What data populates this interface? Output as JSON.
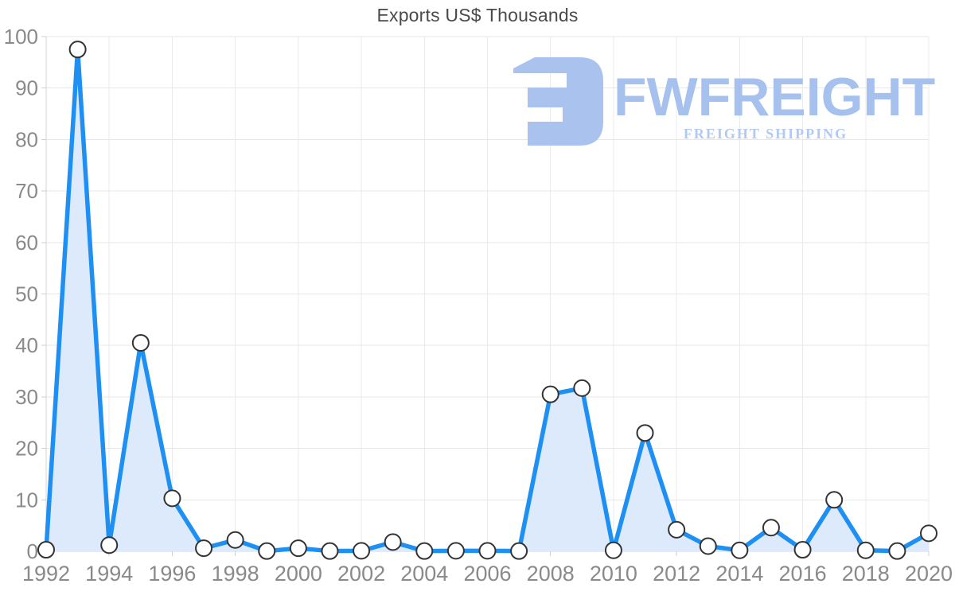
{
  "header": {
    "title": "Exports US$ Thousands"
  },
  "watermark": {
    "brand": "FWFREIGHT",
    "tagline": "FREIGHT SHIPPING",
    "brand_color": "#a6c1ee",
    "tagline_color": "#b2c9f1",
    "icon_color": "#a9c2ee",
    "icon": "freight-logo-icon"
  },
  "chart_data": {
    "type": "area",
    "title": "Exports US$ Thousands",
    "x": [
      1992,
      1993,
      1994,
      1995,
      1996,
      1997,
      1998,
      1999,
      2000,
      2001,
      2002,
      2003,
      2004,
      2005,
      2006,
      2007,
      2008,
      2009,
      2010,
      2011,
      2012,
      2013,
      2014,
      2015,
      2016,
      2017,
      2018,
      2019,
      2020
    ],
    "values": [
      0.3,
      97.5,
      1.2,
      40.5,
      10.3,
      0.6,
      2.2,
      0.05,
      0.6,
      0.05,
      0.1,
      1.8,
      0.05,
      0.1,
      0.1,
      0.05,
      30.5,
      31.7,
      0.2,
      23,
      4.2,
      1,
      0.2,
      4.6,
      0.3,
      10,
      0.2,
      0.05,
      3.5
    ],
    "xlabel": "",
    "ylabel": "",
    "ylim": [
      0,
      100
    ],
    "xlim": [
      1992,
      2020
    ],
    "y_ticks": [
      0,
      10,
      20,
      30,
      40,
      50,
      60,
      70,
      80,
      90,
      100
    ],
    "x_tick_years": [
      1992,
      1994,
      1996,
      1998,
      2000,
      2002,
      2004,
      2006,
      2008,
      2010,
      2012,
      2014,
      2016,
      2018,
      2020
    ],
    "grid": true,
    "legend": "none",
    "marker_shape": "circle",
    "colors": {
      "line": "#1f90f3",
      "fill": "#dceafb",
      "marker_fill": "#ffffff",
      "marker_stroke": "#333333",
      "grid_h": "#e7e7e7",
      "grid_v": "#ebebeb",
      "axis": "#d4d4d4",
      "tick": "#cfcfcf",
      "tick_label": "#8a8a8a",
      "title": "#4a4a4a"
    }
  }
}
